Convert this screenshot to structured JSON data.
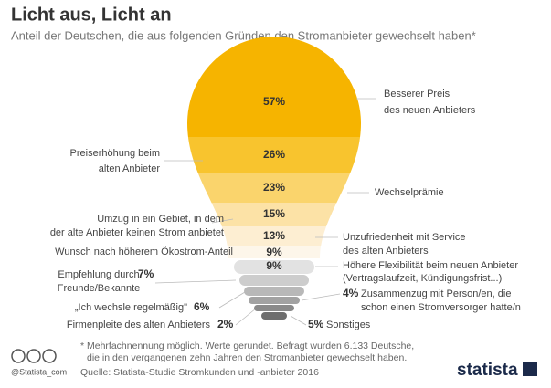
{
  "chart_data": {
    "type": "bulb",
    "title": "Licht aus, Licht an",
    "subtitle": "Anteil der Deutschen, die aus folgenden Gründen den Stromanbieter gewechselt haben*",
    "categories": [
      [
        "Besserer Preis",
        "des neuen Anbieters"
      ],
      [
        "Preiserhöhung beim",
        "alten Anbieter"
      ],
      [
        "Wechselprämie"
      ],
      [
        "Umzug in ein Gebiet, in dem",
        "der alte Anbieter keinen Strom anbietet"
      ],
      [
        "Unzufriedenheit mit Service",
        "des alten Anbieters"
      ],
      [
        "Wunsch nach höherem Ökostrom-Anteil"
      ],
      [
        "Höhere Flexibilität beim neuen Anbieter",
        "(Vertragslaufzeit, Kündigungsfrist...)"
      ],
      [
        "Empfehlung durch",
        "Freunde/Bekannte"
      ],
      [
        "„Ich wechsle regelmäßig\""
      ],
      [
        "Zusammenzug mit Person/en, die",
        "schon einen Stromversorger hatte/n"
      ],
      [
        "Firmenpleite des alten Anbieters"
      ],
      [
        "Sonstiges"
      ]
    ],
    "values": [
      57,
      26,
      23,
      15,
      13,
      9,
      9,
      7,
      6,
      4,
      2,
      5
    ],
    "value_labels": [
      "57%",
      "26%",
      "23%",
      "15%",
      "13%",
      "9%",
      "9%",
      "7%",
      "6%",
      "4%",
      "2%",
      "5%"
    ],
    "colors": [
      "#f6b400",
      "#f8c42e",
      "#fad46c",
      "#fce2a6",
      "#fdeed2",
      "#fdf6ea",
      "#e2e2e2",
      "#cdcdcd",
      "#b8b8b8",
      "#a2a2a2",
      "#8a8a8a",
      "#6e6e6e"
    ],
    "footnote": [
      "* Mehrfachnennung möglich. Werte gerundet. Befragt wurden 6.133 Deutsche,",
      "die in den vergangenen zehn Jahren den Stromanbieter gewechselt haben."
    ],
    "source": "Quelle: Statista-Studie Stromkunden und -anbieter 2016",
    "credit": "@Statista_com",
    "logo": "statista"
  }
}
